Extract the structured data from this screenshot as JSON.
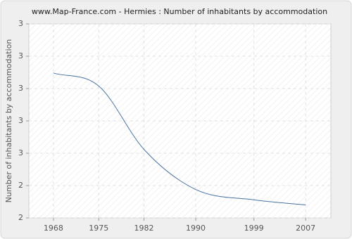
{
  "chart_data": {
    "type": "line",
    "title": "www.Map-France.com - Hermies : Number of inhabitants by accommodation",
    "y_label": "Number of inhabitants by accommodation",
    "x": [
      1968,
      1975,
      1982,
      1990,
      1999,
      2007
    ],
    "series": [
      {
        "name": "Hermies",
        "color": "#4a73a3",
        "values": [
          3.12,
          3.02,
          2.53,
          2.22,
          2.14,
          2.1
        ]
      }
    ],
    "xlim": [
      1964.2,
      2010.9
    ],
    "xticks": [
      1968,
      1975,
      1982,
      1990,
      1999,
      2007
    ],
    "ylim": [
      2.0,
      3.5
    ],
    "yticks": [
      {
        "value": 2.0,
        "label": "2"
      },
      {
        "value": 2.25,
        "label": "2"
      },
      {
        "value": 2.5,
        "label": "3"
      },
      {
        "value": 2.75,
        "label": "3"
      },
      {
        "value": 3.0,
        "label": "3"
      },
      {
        "value": 3.25,
        "label": "3"
      },
      {
        "value": 3.5,
        "label": "3"
      }
    ],
    "grid": true
  }
}
